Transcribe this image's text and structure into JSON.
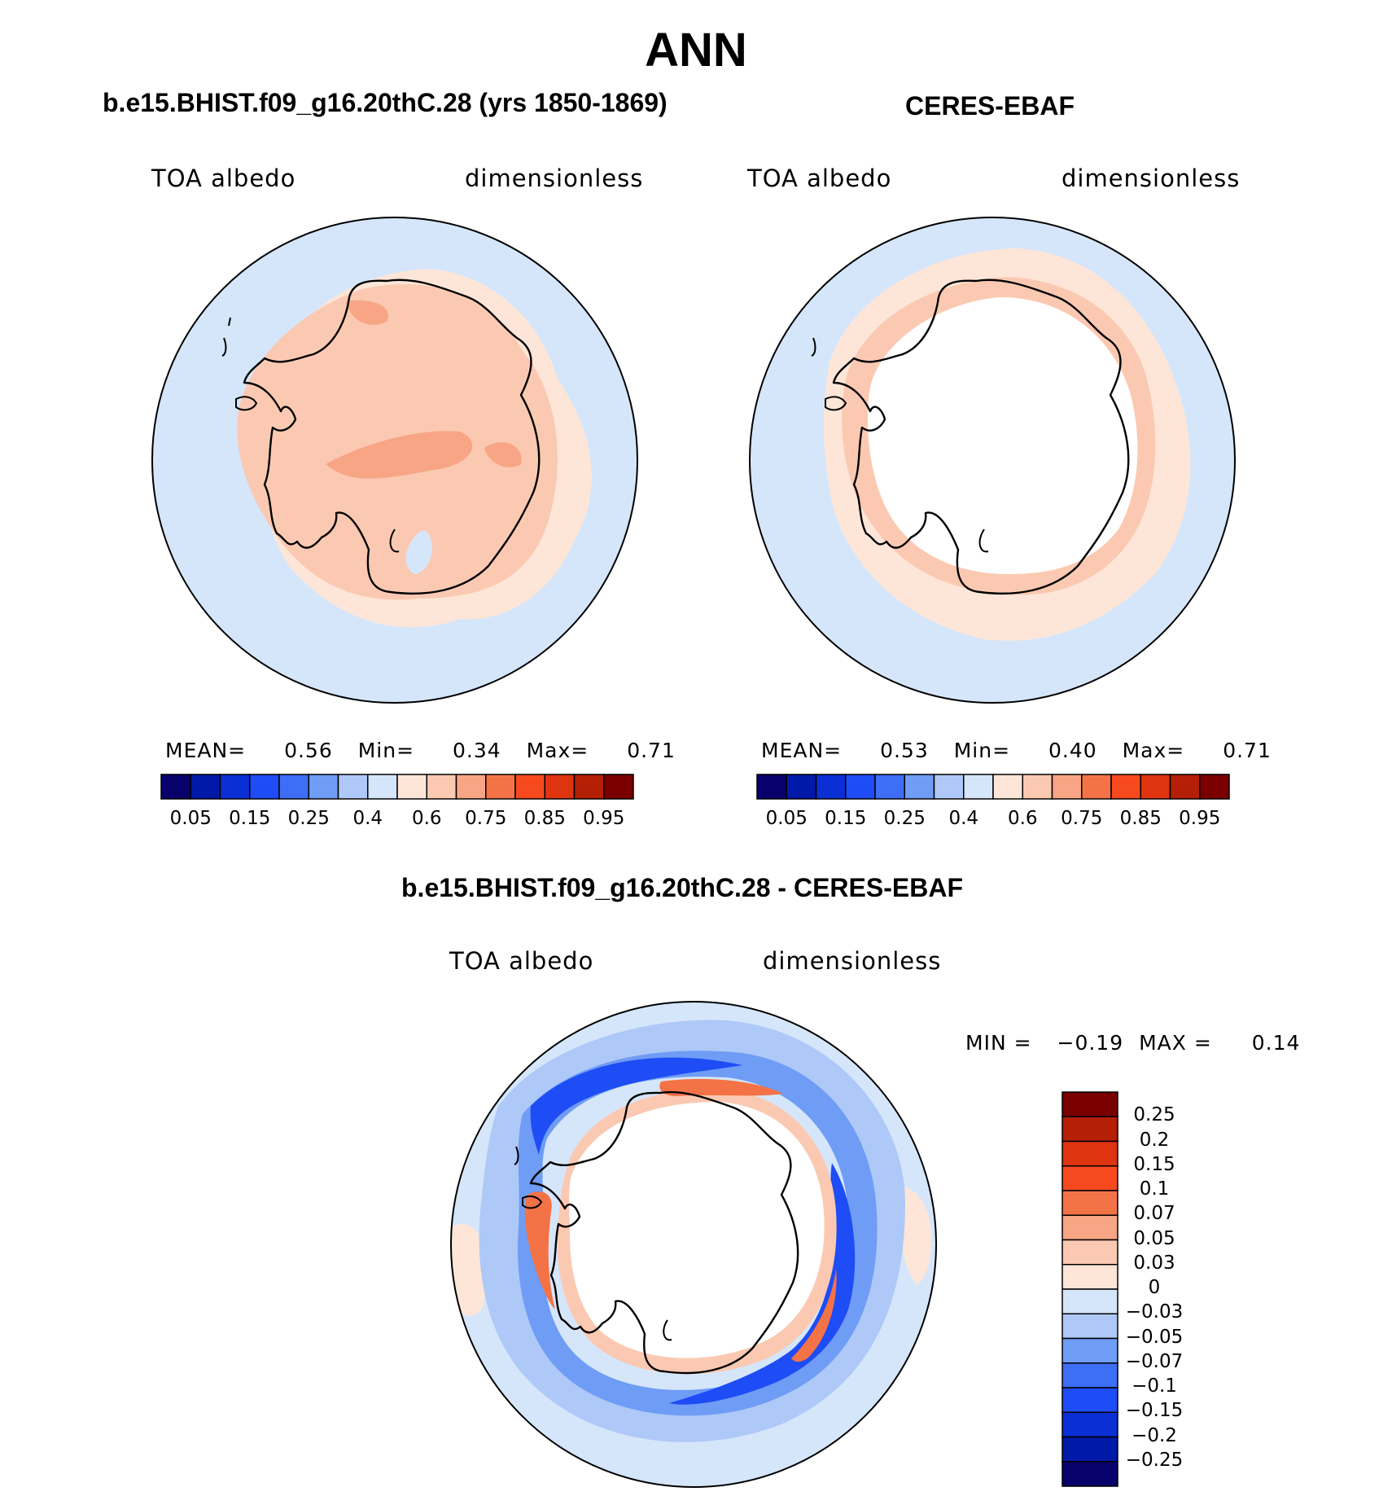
{
  "figure": {
    "title": "ANN",
    "colors": {
      "abs_scale": [
        "#08006b",
        "#0019a8",
        "#0a2fd4",
        "#1e4cf5",
        "#3d6ef5",
        "#6f9cf4",
        "#aec8f8",
        "#d5e6fb",
        "#fde6d8",
        "#fbc9b2",
        "#f8a585",
        "#f47346",
        "#f64a1e",
        "#df3410",
        "#b41f05",
        "#7a0000"
      ],
      "diff_scale": [
        "#08006b",
        "#0019a8",
        "#0a2fd4",
        "#1e4cf5",
        "#3d6ef5",
        "#6f9cf4",
        "#aec8f8",
        "#d5e6fb",
        "#fde6d8",
        "#fbc9b2",
        "#f8a585",
        "#f47346",
        "#f64a1e",
        "#df3410",
        "#b41f05",
        "#7a0000"
      ]
    },
    "panel_model": {
      "title": "b.e15.BHIST.f09_g16.20thC.28 (yrs 1850-1869)",
      "variable": "TOA albedo",
      "units": "dimensionless",
      "stats": {
        "mean_label": "MEAN=",
        "mean": "0.56",
        "min_label": "Min=",
        "min": "0.34",
        "max_label": "Max=",
        "max": "0.71"
      },
      "colorbar_ticks": [
        "0.05",
        "0.15",
        "0.25",
        "0.4",
        "0.6",
        "0.75",
        "0.85",
        "0.95"
      ]
    },
    "panel_obs": {
      "title": "CERES-EBAF",
      "variable": "TOA albedo",
      "units": "dimensionless",
      "stats": {
        "mean_label": "MEAN=",
        "mean": "0.53",
        "min_label": "Min=",
        "min": "0.40",
        "max_label": "Max=",
        "max": "0.71"
      },
      "colorbar_ticks": [
        "0.05",
        "0.15",
        "0.25",
        "0.4",
        "0.6",
        "0.75",
        "0.85",
        "0.95"
      ]
    },
    "panel_diff": {
      "title": "b.e15.BHIST.f09_g16.20thC.28 - CERES-EBAF",
      "variable": "TOA albedo",
      "units": "dimensionless",
      "minmax": {
        "min_label": "MIN =",
        "min": "−0.19",
        "max_label": "MAX =",
        "max": "0.14"
      },
      "colorbar_ticks": [
        "0.25",
        "0.2",
        "0.15",
        "0.1",
        "0.07",
        "0.05",
        "0.03",
        "0",
        "−0.03",
        "−0.05",
        "−0.07",
        "−0.1",
        "−0.15",
        "−0.2",
        "−0.25"
      ]
    }
  }
}
